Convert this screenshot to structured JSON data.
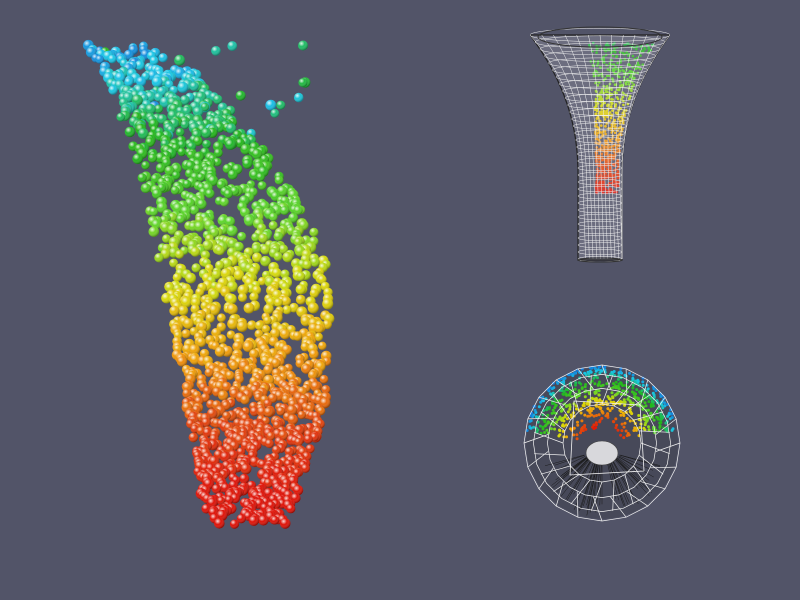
{
  "viewer": {
    "background": "#525468",
    "colormap": [
      "#0b2ecf",
      "#19c6e6",
      "#22b61b",
      "#5ed52a",
      "#d9d90a",
      "#f0a108",
      "#e2460c",
      "#df1207"
    ]
  },
  "views": [
    {
      "name": "main-particle-view",
      "content": "particle-spheres"
    },
    {
      "name": "side-mesh-view",
      "content": "funnel-wireframe-with-particles"
    },
    {
      "name": "top-mesh-view",
      "content": "sphere-wireframe-with-particles"
    }
  ]
}
